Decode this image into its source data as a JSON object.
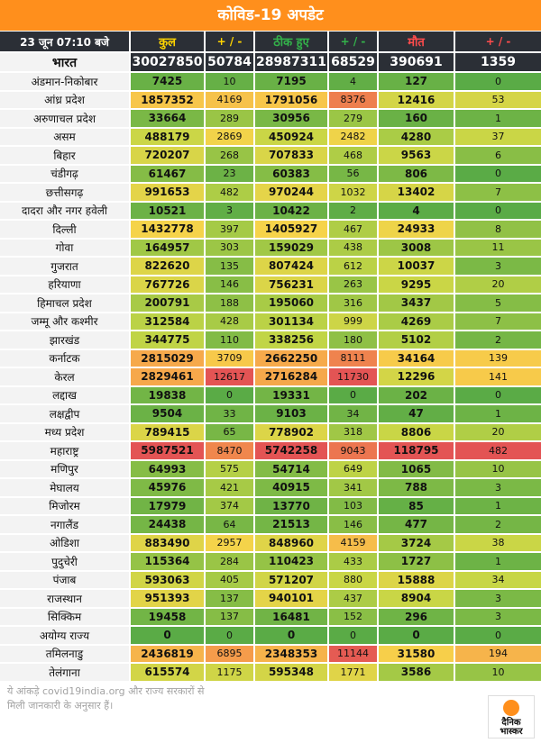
{
  "title": "कोविड-19 अपडेट",
  "header": {
    "date": "23 जून 07:10 बजे",
    "total": "कुल",
    "total_change": "+ / -",
    "recovered": "ठीक हुए",
    "recovered_change": "+ / -",
    "deaths": "मौत",
    "deaths_change": "+ / -"
  },
  "national": {
    "name": "भारत",
    "total": "30027850",
    "total_change": "50784",
    "recovered": "28987311",
    "recovered_change": "68529",
    "deaths": "390691",
    "deaths_change": "1359"
  },
  "rows": [
    {
      "name": "अंडमान-निकोबार",
      "total": "7425",
      "total_change": "10",
      "recovered": "7195",
      "recovered_change": "4",
      "deaths": "127",
      "deaths_change": "0"
    },
    {
      "name": "आंध्र प्रदेश",
      "total": "1857352",
      "total_change": "4169",
      "recovered": "1791056",
      "recovered_change": "8376",
      "deaths": "12416",
      "deaths_change": "53"
    },
    {
      "name": "अरुणाचल प्रदेश",
      "total": "33664",
      "total_change": "289",
      "recovered": "30956",
      "recovered_change": "279",
      "deaths": "160",
      "deaths_change": "1"
    },
    {
      "name": "असम",
      "total": "488179",
      "total_change": "2869",
      "recovered": "450924",
      "recovered_change": "2482",
      "deaths": "4280",
      "deaths_change": "37"
    },
    {
      "name": "बिहार",
      "total": "720207",
      "total_change": "268",
      "recovered": "707833",
      "recovered_change": "468",
      "deaths": "9563",
      "deaths_change": "6"
    },
    {
      "name": "चंडीगढ़",
      "total": "61467",
      "total_change": "23",
      "recovered": "60383",
      "recovered_change": "56",
      "deaths": "806",
      "deaths_change": "0"
    },
    {
      "name": "छत्तीसगढ़",
      "total": "991653",
      "total_change": "482",
      "recovered": "970244",
      "recovered_change": "1032",
      "deaths": "13402",
      "deaths_change": "7"
    },
    {
      "name": "दादरा और नगर हवेली",
      "total": "10521",
      "total_change": "3",
      "recovered": "10422",
      "recovered_change": "2",
      "deaths": "4",
      "deaths_change": "0"
    },
    {
      "name": "दिल्ली",
      "total": "1432778",
      "total_change": "397",
      "recovered": "1405927",
      "recovered_change": "467",
      "deaths": "24933",
      "deaths_change": "8"
    },
    {
      "name": "गोवा",
      "total": "164957",
      "total_change": "303",
      "recovered": "159029",
      "recovered_change": "438",
      "deaths": "3008",
      "deaths_change": "11"
    },
    {
      "name": "गुजरात",
      "total": "822620",
      "total_change": "135",
      "recovered": "807424",
      "recovered_change": "612",
      "deaths": "10037",
      "deaths_change": "3"
    },
    {
      "name": "हरियाणा",
      "total": "767726",
      "total_change": "146",
      "recovered": "756231",
      "recovered_change": "263",
      "deaths": "9295",
      "deaths_change": "20"
    },
    {
      "name": "हिमाचल प्रदेश",
      "total": "200791",
      "total_change": "188",
      "recovered": "195060",
      "recovered_change": "316",
      "deaths": "3437",
      "deaths_change": "5"
    },
    {
      "name": "जम्मू और कश्मीर",
      "total": "312584",
      "total_change": "428",
      "recovered": "301134",
      "recovered_change": "999",
      "deaths": "4269",
      "deaths_change": "7"
    },
    {
      "name": "झारखंड",
      "total": "344775",
      "total_change": "110",
      "recovered": "338256",
      "recovered_change": "180",
      "deaths": "5102",
      "deaths_change": "2"
    },
    {
      "name": "कर्नाटक",
      "total": "2815029",
      "total_change": "3709",
      "recovered": "2662250",
      "recovered_change": "8111",
      "deaths": "34164",
      "deaths_change": "139"
    },
    {
      "name": "केरल",
      "total": "2829461",
      "total_change": "12617",
      "recovered": "2716284",
      "recovered_change": "11730",
      "deaths": "12296",
      "deaths_change": "141"
    },
    {
      "name": "लद्दाख",
      "total": "19838",
      "total_change": "0",
      "recovered": "19331",
      "recovered_change": "0",
      "deaths": "202",
      "deaths_change": "0"
    },
    {
      "name": "लक्षद्वीप",
      "total": "9504",
      "total_change": "33",
      "recovered": "9103",
      "recovered_change": "34",
      "deaths": "47",
      "deaths_change": "1"
    },
    {
      "name": "मध्य प्रदेश",
      "total": "789415",
      "total_change": "65",
      "recovered": "778902",
      "recovered_change": "318",
      "deaths": "8806",
      "deaths_change": "20"
    },
    {
      "name": "महाराष्ट्र",
      "total": "5987521",
      "total_change": "8470",
      "recovered": "5742258",
      "recovered_change": "9043",
      "deaths": "118795",
      "deaths_change": "482"
    },
    {
      "name": "मणिपुर",
      "total": "64993",
      "total_change": "575",
      "recovered": "54714",
      "recovered_change": "649",
      "deaths": "1065",
      "deaths_change": "10"
    },
    {
      "name": "मेघालय",
      "total": "45976",
      "total_change": "421",
      "recovered": "40915",
      "recovered_change": "341",
      "deaths": "788",
      "deaths_change": "3"
    },
    {
      "name": "मिजोरम",
      "total": "17979",
      "total_change": "374",
      "recovered": "13770",
      "recovered_change": "103",
      "deaths": "85",
      "deaths_change": "1"
    },
    {
      "name": "नगालैंड",
      "total": "24438",
      "total_change": "64",
      "recovered": "21513",
      "recovered_change": "146",
      "deaths": "477",
      "deaths_change": "2"
    },
    {
      "name": "ओडिशा",
      "total": "883490",
      "total_change": "2957",
      "recovered": "848960",
      "recovered_change": "4159",
      "deaths": "3724",
      "deaths_change": "38"
    },
    {
      "name": "पुदुचेरी",
      "total": "115364",
      "total_change": "284",
      "recovered": "110423",
      "recovered_change": "433",
      "deaths": "1727",
      "deaths_change": "1"
    },
    {
      "name": "पंजाब",
      "total": "593063",
      "total_change": "405",
      "recovered": "571207",
      "recovered_change": "880",
      "deaths": "15888",
      "deaths_change": "34"
    },
    {
      "name": "राजस्थान",
      "total": "951393",
      "total_change": "137",
      "recovered": "940101",
      "recovered_change": "437",
      "deaths": "8904",
      "deaths_change": "3"
    },
    {
      "name": "सिक्किम",
      "total": "19458",
      "total_change": "137",
      "recovered": "16481",
      "recovered_change": "152",
      "deaths": "296",
      "deaths_change": "3"
    },
    {
      "name": "अयोग्य राज्य",
      "total": "0",
      "total_change": "0",
      "recovered": "0",
      "recovered_change": "0",
      "deaths": "0",
      "deaths_change": "0"
    },
    {
      "name": "तमिलनाडु",
      "total": "2436819",
      "total_change": "6895",
      "recovered": "2348353",
      "recovered_change": "11144",
      "deaths": "31580",
      "deaths_change": "194"
    },
    {
      "name": "तेलंगाना",
      "total": "615574",
      "total_change": "1175",
      "recovered": "595348",
      "recovered_change": "1771",
      "deaths": "3586",
      "deaths_change": "10"
    }
  ],
  "footer": {
    "line1": "ये आंकड़े covid19india.org और राज्य सरकारों से",
    "line2": "मिली जानकारी के अनुसार हैं।"
  },
  "logo": {
    "line1": "दैनिक",
    "line2": "भास्कर"
  },
  "colors": {
    "title_bg": "#ff8f1c",
    "header_bg": "#2b2f36",
    "green": "#5aab46",
    "yellow": "#f7d34a",
    "orange": "#f59a4b",
    "red": "#e35454"
  }
}
